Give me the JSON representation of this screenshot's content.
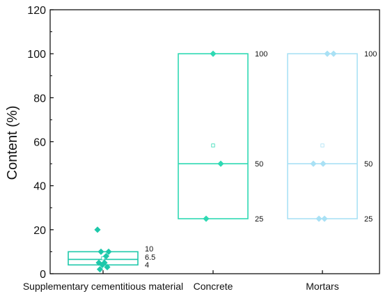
{
  "chart_data": {
    "type": "box",
    "title": "",
    "xlabel": "",
    "ylabel": "Content (%)",
    "ylim": [
      0,
      120
    ],
    "yticks": [
      0,
      20,
      40,
      60,
      80,
      100,
      120
    ],
    "grid": false,
    "categories": [
      "Supplementary cementitious material",
      "Concrete",
      "Mortars"
    ],
    "boxes": [
      {
        "category": "Supplementary cementitious material",
        "color": "#1dc8aa",
        "q1": 4,
        "median": 6.5,
        "q3": 10,
        "mean": 7,
        "labels": [
          "10",
          "6.5",
          "4"
        ],
        "points": [
          20,
          10,
          10,
          8,
          5,
          5,
          4,
          3,
          2
        ]
      },
      {
        "category": "Concrete",
        "color": "#2ed9b3",
        "q1": 25,
        "median": 50,
        "q3": 100,
        "mean": 58.3,
        "labels": [
          "100",
          "50",
          "25"
        ],
        "points": [
          100,
          50,
          25
        ]
      },
      {
        "category": "Mortars",
        "color": "#a9e1f5",
        "q1": 25,
        "median": 50,
        "q3": 100,
        "mean": 58.3,
        "labels": [
          "100",
          "50",
          "25"
        ],
        "points": [
          100,
          100,
          50,
          50,
          25,
          25
        ]
      }
    ]
  }
}
